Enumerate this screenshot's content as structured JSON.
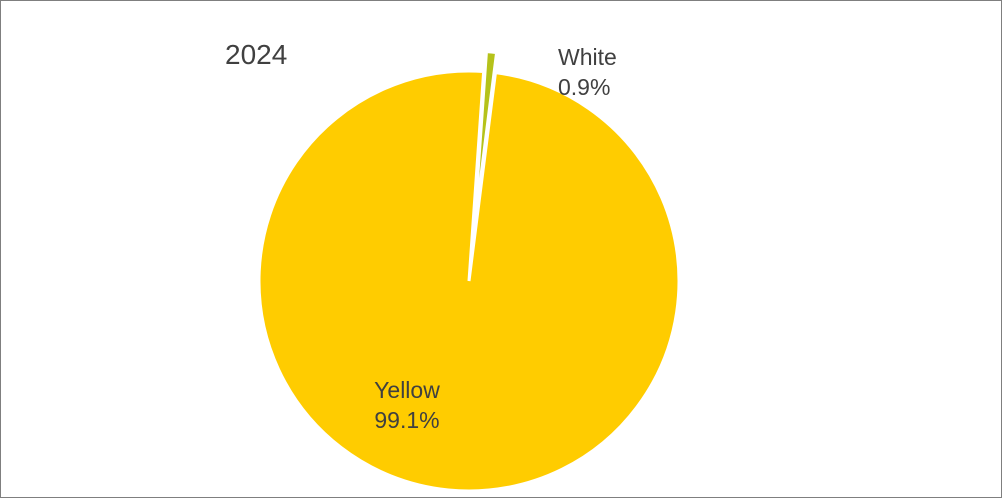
{
  "chart_data": {
    "type": "pie",
    "title": "2024",
    "series": [
      {
        "values": [
          {
            "label": "Yellow",
            "value": 99.1,
            "value_label": "99.1%",
            "color": "#FFCC00"
          },
          {
            "label": "White",
            "value": 0.9,
            "value_label": "0.9%",
            "color": "#B5C21A"
          }
        ]
      }
    ],
    "exploded_slice": "White",
    "legend": "none"
  }
}
